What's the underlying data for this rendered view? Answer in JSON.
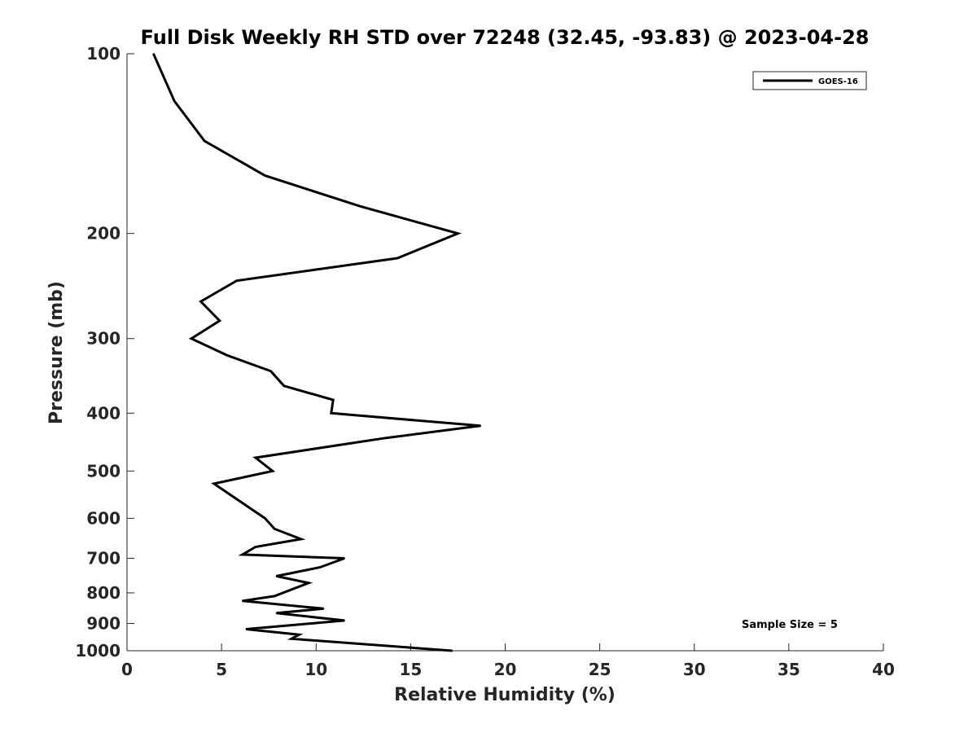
{
  "chart_data": {
    "type": "line",
    "title": "Full Disk Weekly RH STD over 72248 (32.45, -93.83) @ 2023-04-28",
    "xlabel": "Relative Humidity (%)",
    "ylabel": "Pressure (mb)",
    "xlim": [
      0,
      40
    ],
    "ylim": [
      1000,
      100
    ],
    "yscale": "log",
    "y_reversed": true,
    "x_ticks": [
      0,
      5,
      10,
      15,
      20,
      25,
      30,
      35,
      40
    ],
    "y_ticks": [
      100,
      200,
      300,
      400,
      500,
      600,
      700,
      800,
      900,
      1000
    ],
    "grid": false,
    "legend_position": "top-right",
    "series": [
      {
        "name": "GOES-16",
        "color": "#000000",
        "points": [
          {
            "x": 1.4,
            "y": 100
          },
          {
            "x": 2.5,
            "y": 120
          },
          {
            "x": 4.1,
            "y": 140
          },
          {
            "x": 7.3,
            "y": 160
          },
          {
            "x": 12.3,
            "y": 180
          },
          {
            "x": 17.5,
            "y": 200
          },
          {
            "x": 14.3,
            "y": 220
          },
          {
            "x": 5.8,
            "y": 240
          },
          {
            "x": 3.9,
            "y": 260
          },
          {
            "x": 4.9,
            "y": 280
          },
          {
            "x": 3.4,
            "y": 300
          },
          {
            "x": 5.3,
            "y": 320
          },
          {
            "x": 7.6,
            "y": 340
          },
          {
            "x": 8.3,
            "y": 360
          },
          {
            "x": 10.9,
            "y": 380
          },
          {
            "x": 10.8,
            "y": 400
          },
          {
            "x": 18.7,
            "y": 420
          },
          {
            "x": 13.7,
            "y": 440
          },
          {
            "x": 6.8,
            "y": 475
          },
          {
            "x": 7.7,
            "y": 500
          },
          {
            "x": 4.6,
            "y": 525
          },
          {
            "x": 5.9,
            "y": 560
          },
          {
            "x": 7.3,
            "y": 600
          },
          {
            "x": 7.8,
            "y": 625
          },
          {
            "x": 9.2,
            "y": 650
          },
          {
            "x": 6.8,
            "y": 670
          },
          {
            "x": 6.1,
            "y": 690
          },
          {
            "x": 11.5,
            "y": 700
          },
          {
            "x": 10.2,
            "y": 725
          },
          {
            "x": 7.9,
            "y": 750
          },
          {
            "x": 9.6,
            "y": 770
          },
          {
            "x": 7.8,
            "y": 810
          },
          {
            "x": 6.1,
            "y": 825
          },
          {
            "x": 10.4,
            "y": 850
          },
          {
            "x": 7.9,
            "y": 865
          },
          {
            "x": 11.5,
            "y": 890
          },
          {
            "x": 6.3,
            "y": 920
          },
          {
            "x": 9.1,
            "y": 940
          },
          {
            "x": 8.7,
            "y": 955
          },
          {
            "x": 17.2,
            "y": 1000
          }
        ]
      }
    ],
    "annotations": [
      {
        "text": "Sample Size = 5",
        "position": "bottom-right"
      }
    ]
  }
}
